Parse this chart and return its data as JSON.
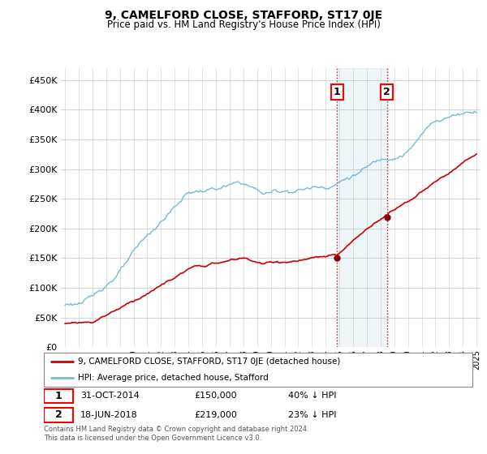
{
  "title": "9, CAMELFORD CLOSE, STAFFORD, ST17 0JE",
  "subtitle": "Price paid vs. HM Land Registry's House Price Index (HPI)",
  "footer": "Contains HM Land Registry data © Crown copyright and database right 2024.\nThis data is licensed under the Open Government Licence v3.0.",
  "legend_line1": "9, CAMELFORD CLOSE, STAFFORD, ST17 0JE (detached house)",
  "legend_line2": "HPI: Average price, detached house, Stafford",
  "annotation1_date": "31-OCT-2014",
  "annotation1_price": "£150,000",
  "annotation1_hpi": "40% ↓ HPI",
  "annotation1_value": 150000,
  "annotation1_year": 2014.83,
  "annotation2_date": "18-JUN-2018",
  "annotation2_price": "£219,000",
  "annotation2_hpi": "23% ↓ HPI",
  "annotation2_value": 219000,
  "annotation2_year": 2018.46,
  "hpi_color": "#7ab8d4",
  "price_color": "#cc0000",
  "marker_color": "#8b0000",
  "background_color": "#ffffff",
  "grid_color": "#cccccc",
  "ylim": [
    0,
    470000
  ],
  "yticks": [
    0,
    50000,
    100000,
    150000,
    200000,
    250000,
    300000,
    350000,
    400000,
    450000
  ],
  "shade_x1": 2014.83,
  "shade_x2": 2018.46,
  "xlim_left": 1994.7,
  "xlim_right": 2025.3
}
